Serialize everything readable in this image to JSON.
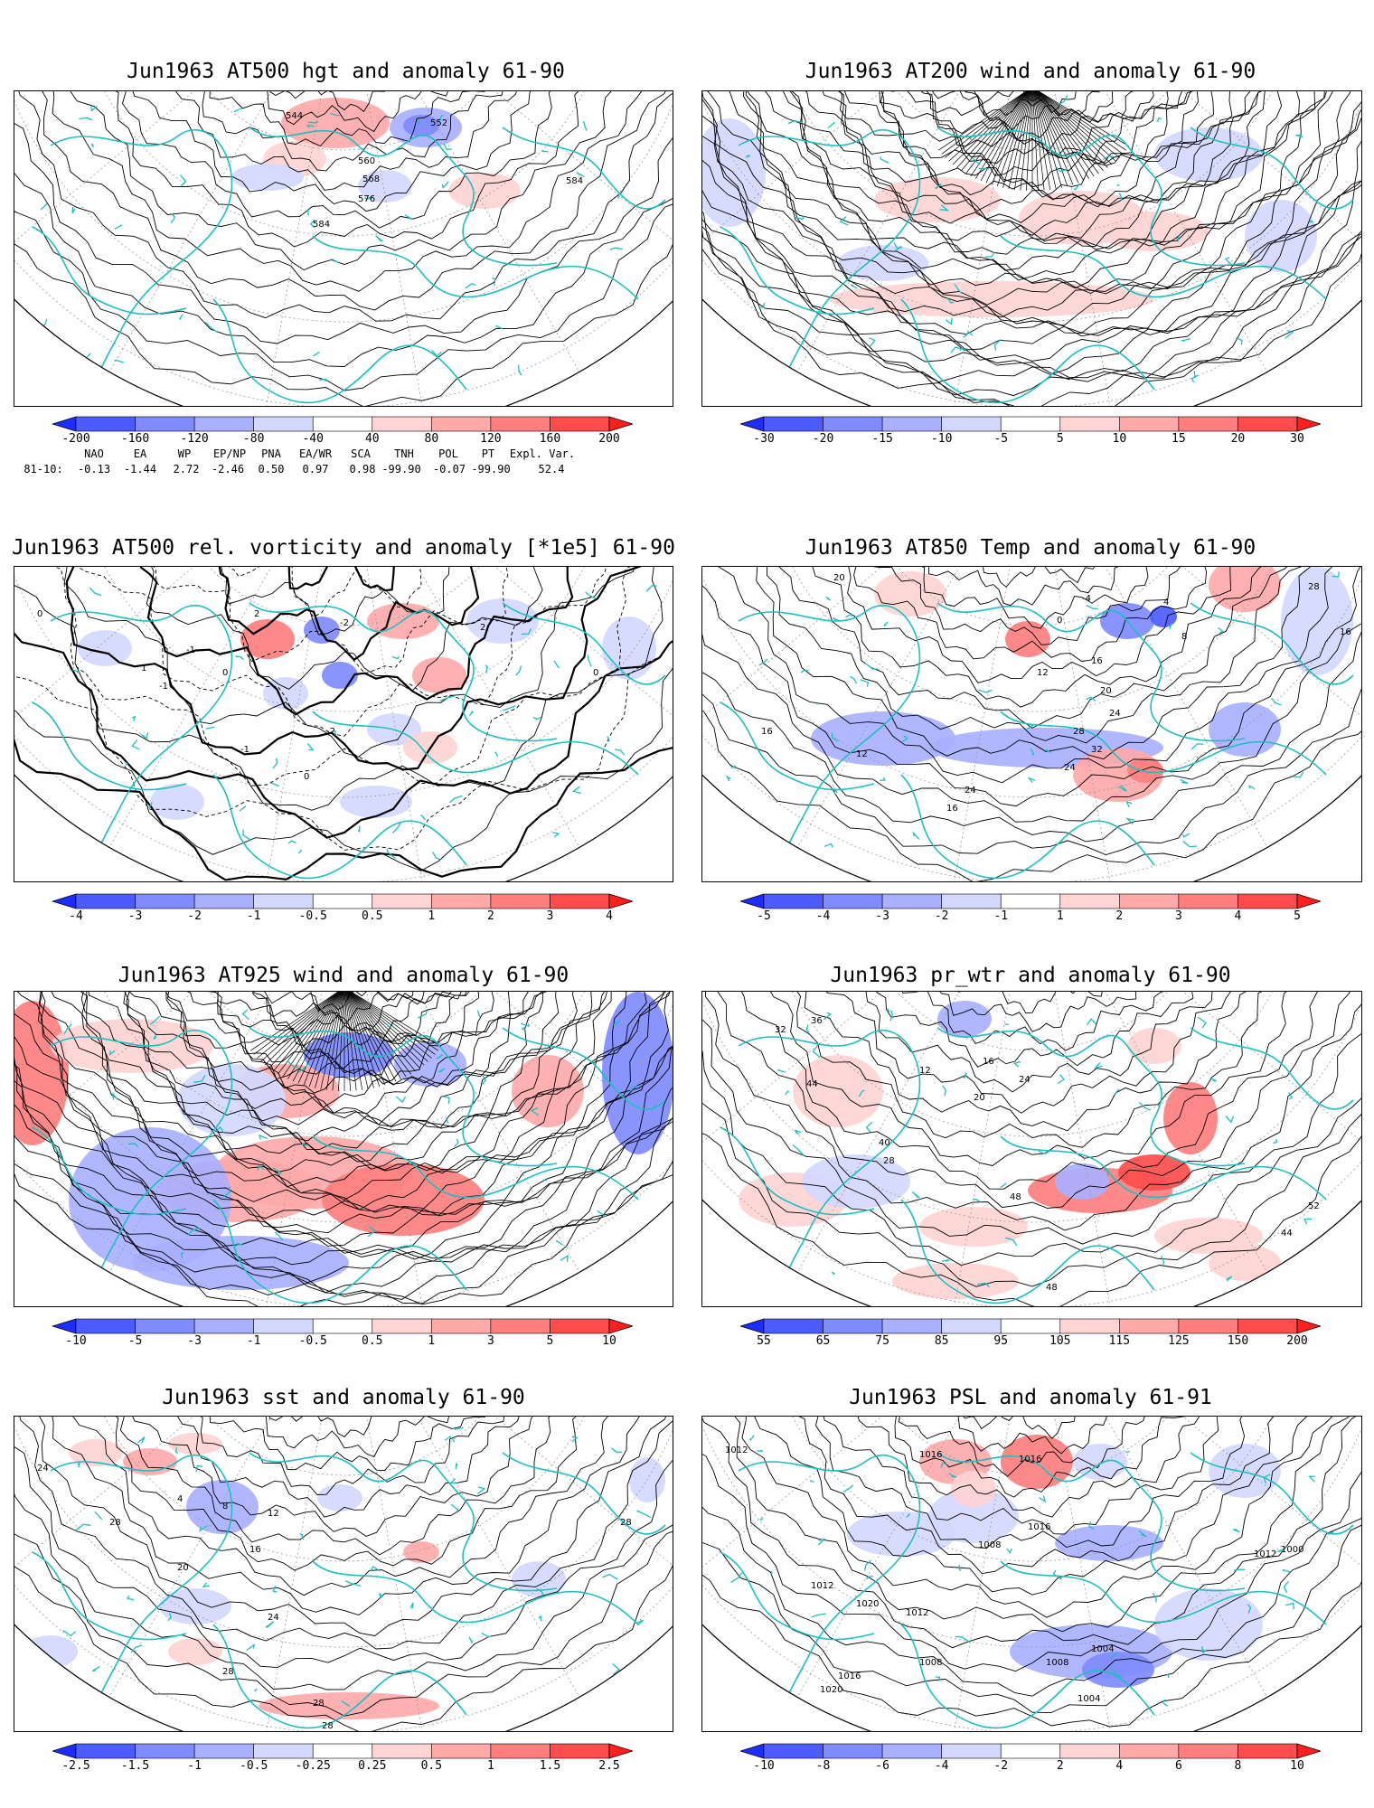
{
  "panels": [
    {
      "id": "hgt500",
      "title": "Jun1963 AT500 hgt and anomaly 61-90",
      "colorbar": {
        "labels": [
          "-200",
          "-160",
          "-120",
          "-80",
          "-40",
          "40",
          "80",
          "120",
          "160",
          "200"
        ],
        "colors": [
          "#1f2cff",
          "#4d5cff",
          "#7f8bff",
          "#a9b0ff",
          "#d4d8ff",
          "#ffffff",
          "#ffd4d4",
          "#ffa9a9",
          "#ff7f7f",
          "#ff4d4d",
          "#ff1f1f"
        ]
      },
      "contour_labels": [
        "544",
        "552",
        "560",
        "568",
        "576",
        "584",
        "584"
      ]
    },
    {
      "id": "wind200",
      "title": "Jun1963 AT200 wind and anomaly 61-90",
      "colorbar": {
        "labels": [
          "-30",
          "-20",
          "-15",
          "-10",
          "-5",
          "5",
          "10",
          "15",
          "20",
          "30"
        ],
        "colors": [
          "#1f2cff",
          "#4d5cff",
          "#7f8bff",
          "#a9b0ff",
          "#d4d8ff",
          "#ffffff",
          "#ffd4d4",
          "#ffa9a9",
          "#ff7f7f",
          "#ff4d4d",
          "#ff1f1f"
        ]
      },
      "contour_labels": []
    },
    {
      "id": "vort500",
      "title": "Jun1963 AT500 rel. vorticity and anomaly [*1e5] 61-90",
      "colorbar": {
        "labels": [
          "-4",
          "-3",
          "-2",
          "-1",
          "-0.5",
          "0.5",
          "1",
          "2",
          "3",
          "4"
        ],
        "colors": [
          "#1f2cff",
          "#4d5cff",
          "#7f8bff",
          "#a9b0ff",
          "#d4d8ff",
          "#ffffff",
          "#ffd4d4",
          "#ffa9a9",
          "#ff7f7f",
          "#ff4d4d",
          "#ff1f1f"
        ]
      },
      "contour_labels": [
        "0",
        "2",
        "-1",
        "-2",
        "1",
        "0",
        "-1",
        "0",
        "-2",
        "-1",
        "2",
        "0"
      ]
    },
    {
      "id": "temp850",
      "title": "Jun1963 AT850 Temp and anomaly 61-90",
      "colorbar": {
        "labels": [
          "-5",
          "-4",
          "-3",
          "-2",
          "-1",
          "1",
          "2",
          "3",
          "4",
          "5"
        ],
        "colors": [
          "#1f2cff",
          "#4d5cff",
          "#7f8bff",
          "#a9b0ff",
          "#d4d8ff",
          "#ffffff",
          "#ffd4d4",
          "#ffa9a9",
          "#ff7f7f",
          "#ff4d4d",
          "#ff1f1f"
        ]
      },
      "contour_labels": [
        "20",
        "-4",
        "0",
        "4",
        "8",
        "28",
        "16",
        "16",
        "16",
        "12",
        "20",
        "24",
        "28",
        "32",
        "24",
        "12",
        "24",
        "16"
      ]
    },
    {
      "id": "wind925",
      "title": "Jun1963 AT925 wind and anomaly 61-90",
      "colorbar": {
        "labels": [
          "-10",
          "-5",
          "-3",
          "-1",
          "-0.5",
          "0.5",
          "1",
          "3",
          "5",
          "10"
        ],
        "colors": [
          "#1f2cff",
          "#4d5cff",
          "#7f8bff",
          "#a9b0ff",
          "#d4d8ff",
          "#ffffff",
          "#ffd4d4",
          "#ffa9a9",
          "#ff7f7f",
          "#ff4d4d",
          "#ff1f1f"
        ]
      },
      "contour_labels": []
    },
    {
      "id": "prwtr",
      "title": "Jun1963 pr_wtr and anomaly 61-90",
      "colorbar": {
        "labels": [
          "55",
          "65",
          "75",
          "85",
          "95",
          "105",
          "115",
          "125",
          "150",
          "200"
        ],
        "colors": [
          "#1f2cff",
          "#4d5cff",
          "#7f8bff",
          "#a9b0ff",
          "#d4d8ff",
          "#ffffff",
          "#ffd4d4",
          "#ffa9a9",
          "#ff7f7f",
          "#ff4d4d",
          "#ff1f1f"
        ]
      },
      "contour_labels": [
        "32",
        "36",
        "44",
        "16",
        "12",
        "24",
        "20",
        "40",
        "28",
        "48",
        "44",
        "40",
        "48",
        "44",
        "52"
      ]
    },
    {
      "id": "sst",
      "title": "Jun1963 sst and anomaly 61-90",
      "colorbar": {
        "labels": [
          "-2.5",
          "-1.5",
          "-1",
          "-0.5",
          "-0.25",
          "0.25",
          "0.5",
          "1",
          "1.5",
          "2.5"
        ],
        "colors": [
          "#1f2cff",
          "#4d5cff",
          "#7f8bff",
          "#a9b0ff",
          "#d4d8ff",
          "#ffffff",
          "#ffd4d4",
          "#ffa9a9",
          "#ff7f7f",
          "#ff4d4d",
          "#ff1f1f"
        ]
      },
      "contour_labels": [
        "24",
        "28",
        "4",
        "8",
        "12",
        "16",
        "20",
        "24",
        "28",
        "28",
        "28",
        "28"
      ]
    },
    {
      "id": "psl",
      "title": "Jun1963 PSL and anomaly 61-91",
      "colorbar": {
        "labels": [
          "-10",
          "-8",
          "-6",
          "-4",
          "-2",
          "2",
          "4",
          "6",
          "8",
          "10"
        ],
        "colors": [
          "#1f2cff",
          "#4d5cff",
          "#7f8bff",
          "#a9b0ff",
          "#d4d8ff",
          "#ffffff",
          "#ffd4d4",
          "#ffa9a9",
          "#ff7f7f",
          "#ff4d4d",
          "#ff1f1f"
        ]
      },
      "contour_labels": [
        "1012",
        "1016",
        "1012",
        "1016",
        "1008",
        "1016",
        "1020",
        "1012",
        "1008",
        "1004",
        "1020",
        "1016",
        "1008",
        "1012",
        "1004",
        "1000"
      ]
    }
  ],
  "teleconnections": {
    "headers": [
      "NAO",
      "EA",
      "WP",
      "EP/NP",
      "PNA",
      "EA/WR",
      "SCA",
      "TNH",
      "POL",
      "PT",
      "Expl. Var."
    ],
    "row_label": "81-10:",
    "values": [
      "-0.13",
      "-1.44",
      "2.72",
      "-2.46",
      "0.50",
      "0.97",
      "0.98",
      "-99.90",
      "-0.07",
      "-99.90",
      "52.4"
    ]
  },
  "colors": {
    "coastline": "#1fbfbf",
    "contour": "#000000",
    "graticule": "#9a9a9a"
  }
}
